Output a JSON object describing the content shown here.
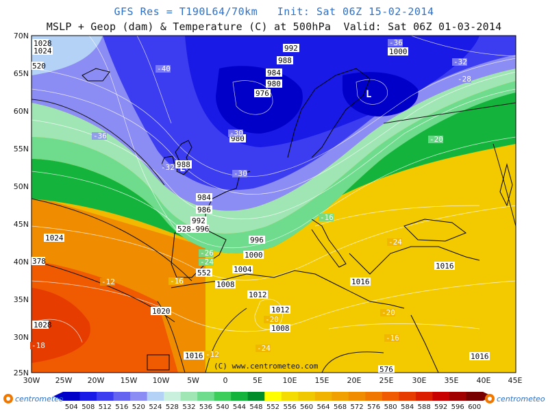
{
  "header": {
    "line1": "GFS Res = T190L64/70km   Init: Sat 06Z 15-02-2014",
    "line2": "MSLP + Geop (dam) & Temperature (C) at 500hPa  Valid: Sat 06Z 01-03-2014"
  },
  "axes": {
    "lat_labels": [
      "70N",
      "65N",
      "60N",
      "55N",
      "50N",
      "45N",
      "40N",
      "35N",
      "30N",
      "25N"
    ],
    "lon_labels": [
      "30W",
      "25W",
      "20W",
      "15W",
      "10W",
      "5W",
      "0",
      "5E",
      "10E",
      "15E",
      "20E",
      "25E",
      "30E",
      "35E",
      "40E",
      "45E"
    ]
  },
  "pressure_labels": [
    "992",
    "988",
    "984",
    "980",
    "976",
    "1000",
    "980",
    "988",
    "984",
    "986",
    "992",
    "996",
    "996",
    "1000",
    "1004",
    "1008",
    "1012",
    "1012",
    "1008",
    "1016",
    "1016",
    "1020",
    "1024",
    "1024",
    "1028",
    "1028",
    "1016",
    "1016"
  ],
  "temperature_labels": [
    "-36",
    "-32",
    "-28",
    "-40",
    "-36",
    "-30",
    "-32",
    "-30",
    "-20",
    "-16",
    "-26",
    "-24",
    "-16",
    "-12",
    "-24",
    "-20",
    "-24",
    "-20",
    "-16",
    "-12",
    "-18"
  ],
  "misc_labels": {
    "geop_pair": "528-996",
    "geop_552": "552",
    "geop_576": "576",
    "geop_378": "378",
    "geop_520": "520",
    "low_mark": "L",
    "credit": "(C) www.centrometeo.com"
  },
  "colorbar": {
    "values": [
      "504",
      "508",
      "512",
      "516",
      "520",
      "524",
      "528",
      "532",
      "536",
      "540",
      "544",
      "548",
      "552",
      "556",
      "560",
      "564",
      "568",
      "572",
      "576",
      "580",
      "584",
      "588",
      "592",
      "596",
      "600"
    ],
    "colors": [
      "#0000c8",
      "#1a1ae6",
      "#3c3cf0",
      "#6464f0",
      "#8c8cf5",
      "#b4d2f5",
      "#c8f0dc",
      "#a0e6b4",
      "#6edc8c",
      "#3ccd5a",
      "#14b43c",
      "#008c28",
      "#ffff00",
      "#f5dc00",
      "#f0c800",
      "#f0b400",
      "#f0a000",
      "#f08c00",
      "#f07800",
      "#f05a00",
      "#e63c00",
      "#dc1e00",
      "#c80000",
      "#a00000",
      "#780000"
    ]
  },
  "logo": {
    "left": "centrometeo",
    "right": "centrometeo"
  }
}
